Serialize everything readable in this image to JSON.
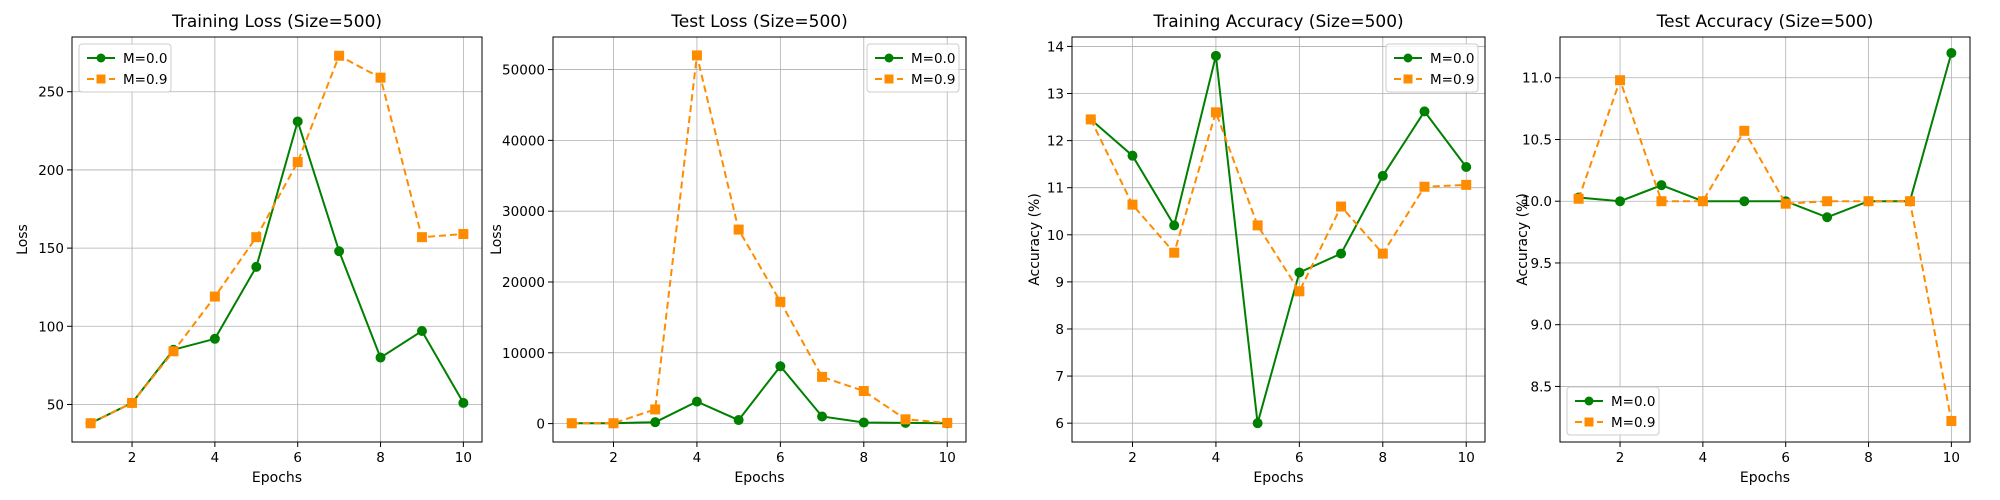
{
  "chart_data": [
    {
      "type": "line",
      "title": "Training Loss (Size=500)",
      "xlabel": "Epochs",
      "ylabel": "Loss",
      "x": [
        1,
        2,
        3,
        4,
        5,
        6,
        7,
        8,
        9,
        10
      ],
      "xlim": [
        0.55,
        10.45
      ],
      "ylim": [
        26,
        285
      ],
      "xticks": [
        2,
        4,
        6,
        8,
        10
      ],
      "yticks": [
        50,
        100,
        150,
        200,
        250
      ],
      "grid": true,
      "legend_position": "upper-left",
      "series": [
        {
          "name": "M=0.0",
          "color": "#008000",
          "style": "solid",
          "marker": "circle",
          "values": [
            38,
            51,
            85,
            92,
            138,
            231,
            148,
            80,
            97,
            51
          ]
        },
        {
          "name": "M=0.9",
          "color": "#ff8c00",
          "style": "dashed",
          "marker": "square",
          "values": [
            38,
            51,
            84,
            119,
            157,
            205,
            273,
            259,
            157,
            159
          ]
        }
      ]
    },
    {
      "type": "line",
      "title": "Test Loss (Size=500)",
      "xlabel": "Epochs",
      "ylabel": "Loss",
      "x": [
        1,
        2,
        3,
        4,
        5,
        6,
        7,
        8,
        9,
        10
      ],
      "xlim": [
        0.55,
        10.45
      ],
      "ylim": [
        -2600,
        54600
      ],
      "xticks": [
        2,
        4,
        6,
        8,
        10
      ],
      "yticks": [
        0,
        10000,
        20000,
        30000,
        40000,
        50000
      ],
      "grid": true,
      "legend_position": "upper-right",
      "series": [
        {
          "name": "M=0.0",
          "color": "#008000",
          "style": "solid",
          "marker": "circle",
          "values": [
            50,
            50,
            200,
            3100,
            500,
            8100,
            1000,
            150,
            100,
            50
          ]
        },
        {
          "name": "M=0.9",
          "color": "#ff8c00",
          "style": "dashed",
          "marker": "square",
          "values": [
            50,
            50,
            2000,
            52000,
            27400,
            17200,
            6600,
            4600,
            600,
            100
          ]
        }
      ]
    },
    {
      "type": "line",
      "title": "Training Accuracy (Size=500)",
      "xlabel": "Epochs",
      "ylabel": "Accuracy (%)",
      "x": [
        1,
        2,
        3,
        4,
        5,
        6,
        7,
        8,
        9,
        10
      ],
      "xlim": [
        0.55,
        10.45
      ],
      "ylim": [
        5.6,
        14.2
      ],
      "xticks": [
        2,
        4,
        6,
        8,
        10
      ],
      "yticks": [
        6,
        7,
        8,
        9,
        10,
        11,
        12,
        13,
        14
      ],
      "grid": true,
      "legend_position": "upper-right",
      "series": [
        {
          "name": "M=0.0",
          "color": "#008000",
          "style": "solid",
          "marker": "circle",
          "values": [
            12.45,
            11.68,
            10.2,
            13.8,
            6.0,
            9.2,
            9.6,
            11.25,
            12.62,
            11.44
          ]
        },
        {
          "name": "M=0.9",
          "color": "#ff8c00",
          "style": "dashed",
          "marker": "square",
          "values": [
            12.45,
            10.64,
            9.62,
            12.6,
            10.2,
            8.8,
            10.6,
            9.6,
            11.02,
            11.06
          ]
        }
      ]
    },
    {
      "type": "line",
      "title": "Test Accuracy (Size=500)",
      "xlabel": "Epochs",
      "ylabel": "Accuracy (%)",
      "x": [
        1,
        2,
        3,
        4,
        5,
        6,
        7,
        8,
        9,
        10
      ],
      "xlim": [
        0.55,
        10.45
      ],
      "ylim": [
        8.05,
        11.33
      ],
      "xticks": [
        2,
        4,
        6,
        8,
        10
      ],
      "yticks": [
        8.5,
        9.0,
        9.5,
        10.0,
        10.5,
        11.0
      ],
      "grid": true,
      "legend_position": "lower-left",
      "series": [
        {
          "name": "M=0.0",
          "color": "#008000",
          "style": "solid",
          "marker": "circle",
          "values": [
            10.03,
            10.0,
            10.13,
            10.0,
            10.0,
            10.0,
            9.87,
            10.0,
            10.0,
            11.2
          ]
        },
        {
          "name": "M=0.9",
          "color": "#ff8c00",
          "style": "dashed",
          "marker": "square",
          "values": [
            10.02,
            10.98,
            10.0,
            10.0,
            10.57,
            9.98,
            10.0,
            10.0,
            10.0,
            8.22
          ]
        }
      ]
    }
  ]
}
